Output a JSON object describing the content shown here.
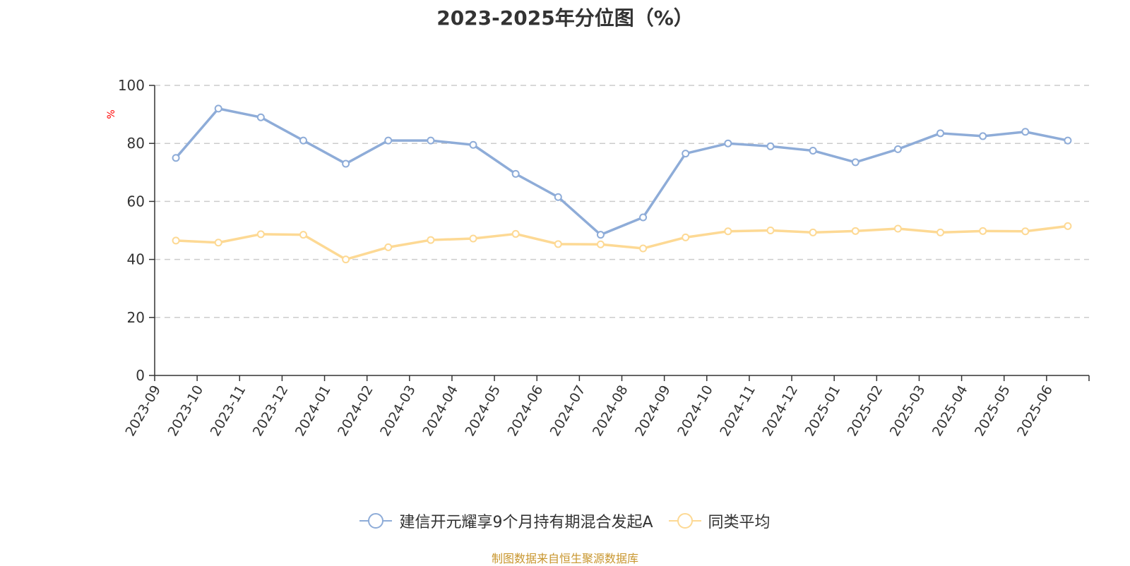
{
  "chart_data": {
    "type": "line",
    "title": "2023-2025年分位图（%）",
    "y_unit": "%",
    "ylim": [
      0,
      100
    ],
    "y_ticks": [
      0,
      20,
      40,
      60,
      80,
      100
    ],
    "grid": "horizontal dashed",
    "legend_position": "bottom",
    "categories": [
      "2023-09",
      "2023-10",
      "2023-11",
      "2023-12",
      "2024-01",
      "2024-02",
      "2024-03",
      "2024-04",
      "2024-05",
      "2024-06",
      "2024-07",
      "2024-08",
      "2024-09",
      "2024-10",
      "2024-11",
      "2024-12",
      "2025-01",
      "2025-02",
      "2025-03",
      "2025-04",
      "2025-05",
      "2025-06"
    ],
    "series": [
      {
        "name": "建信开元耀享9个月持有期混合发起A",
        "color": "#8eacd8",
        "values": [
          75,
          92,
          89,
          81,
          73,
          81,
          81,
          79.5,
          69.5,
          61.5,
          48.5,
          54.5,
          76.5,
          80,
          79,
          77.5,
          73.5,
          78,
          83.5,
          82.5,
          84,
          81
        ]
      },
      {
        "name": "同类平均",
        "color": "#fdd994",
        "values": [
          46.5,
          45.8,
          48.7,
          48.5,
          40,
          44.2,
          46.7,
          47.2,
          48.8,
          45.3,
          45.2,
          43.8,
          47.6,
          49.7,
          50,
          49.3,
          49.8,
          50.6,
          49.3,
          49.8,
          49.7,
          51.5
        ]
      }
    ]
  },
  "source": "制图数据来自恒生聚源数据库"
}
